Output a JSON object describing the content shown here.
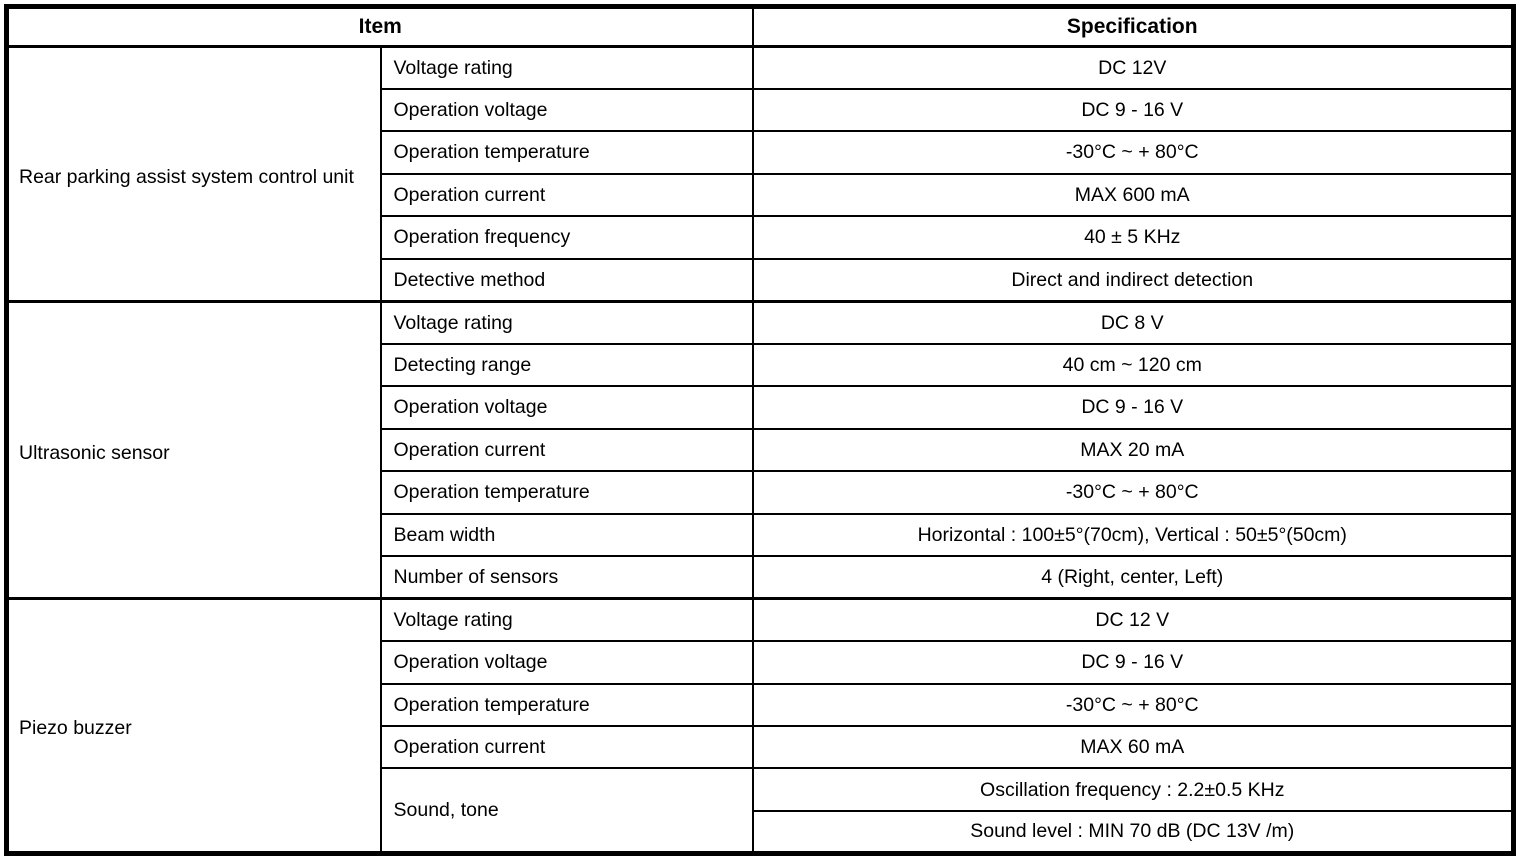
{
  "table": {
    "headers": {
      "item": "Item",
      "specification": "Specification"
    },
    "groups": [
      {
        "name": "Rear parking assist system control unit",
        "rows": [
          {
            "item": "Voltage rating",
            "spec": "DC 12V"
          },
          {
            "item": "Operation voltage",
            "spec": "DC 9 - 16 V"
          },
          {
            "item": "Operation temperature",
            "spec": "-30°C ~ + 80°C"
          },
          {
            "item": "Operation current",
            "spec": "MAX 600 mA"
          },
          {
            "item": "Operation frequency",
            "spec": "40 ± 5 KHz"
          },
          {
            "item": "Detective method",
            "spec": "Direct and indirect detection"
          }
        ]
      },
      {
        "name": "Ultrasonic sensor",
        "rows": [
          {
            "item": "Voltage rating",
            "spec": "DC 8 V"
          },
          {
            "item": "Detecting range",
            "spec": "40 cm ~ 120 cm"
          },
          {
            "item": "Operation voltage",
            "spec": "DC 9 - 16 V"
          },
          {
            "item": "Operation current",
            "spec": "MAX 20 mA"
          },
          {
            "item": "Operation temperature",
            "spec": "-30°C ~ + 80°C"
          },
          {
            "item": "Beam width",
            "spec": "Horizontal : 100±5°(70cm), Vertical : 50±5°(50cm)"
          },
          {
            "item": "Number of sensors",
            "spec": "4 (Right, center, Left)"
          }
        ]
      },
      {
        "name": "Piezo buzzer",
        "rows": [
          {
            "item": "Voltage rating",
            "spec": "DC 12 V"
          },
          {
            "item": "Operation voltage",
            "spec": "DC 9 - 16 V"
          },
          {
            "item": "Operation temperature",
            "spec": "-30°C ~ + 80°C"
          },
          {
            "item": "Operation current",
            "spec": "MAX 60 mA"
          },
          {
            "item": "Sound, tone",
            "specs": [
              "Oscillation frequency : 2.2±0.5 KHz",
              "Sound level : MIN 70 dB (DC 13V /m)"
            ]
          }
        ]
      }
    ]
  }
}
